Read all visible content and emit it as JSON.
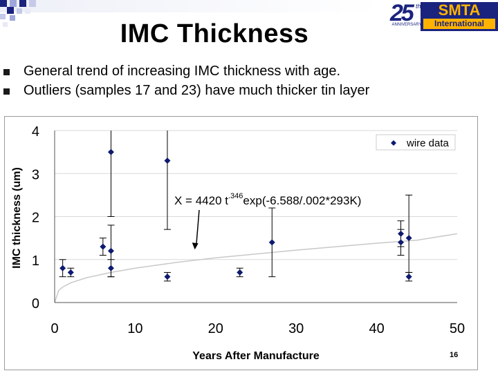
{
  "slide": {
    "title": "IMC Thickness",
    "bullets": [
      "General trend of increasing IMC thickness with age.",
      "Outliers (samples 17 and 23) have much thicker tin layer"
    ],
    "page_number": "16"
  },
  "logo": {
    "anniversary": "25",
    "anniversary_suffix": "th",
    "anniversary_sub": "ANNIVERSARY",
    "brand": "SMTA",
    "brand_sub": "International"
  },
  "colors": {
    "series": "#0d1a6e",
    "trend": "#c8c8c8",
    "grid": "#d9d9d9"
  },
  "chart_data": {
    "type": "scatter",
    "xlabel": "Years After Manufacture",
    "ylabel": "IMC thickness (um)",
    "xlim": [
      0,
      50
    ],
    "ylim": [
      0,
      4
    ],
    "x_ticks": [
      "0",
      "10",
      "20",
      "30",
      "40",
      "50"
    ],
    "y_ticks": [
      "0",
      "1",
      "2",
      "3",
      "4"
    ],
    "grid": "horizontal",
    "legend_placement": "top-right",
    "series": [
      {
        "name": "wire data",
        "points": [
          {
            "x": 1,
            "y": 0.8,
            "err_low": 0.6,
            "err_high": 1.0
          },
          {
            "x": 2,
            "y": 0.7,
            "err_low": 0.6,
            "err_high": 0.8
          },
          {
            "x": 6,
            "y": 1.3,
            "err_low": 1.1,
            "err_high": 1.5
          },
          {
            "x": 7,
            "y": 3.5,
            "err_low": 2.0,
            "err_high": 4.0
          },
          {
            "x": 7,
            "y": 1.2,
            "err_low": 0.6,
            "err_high": 1.8
          },
          {
            "x": 7,
            "y": 0.8,
            "err_low": 0.6,
            "err_high": 1.0
          },
          {
            "x": 14,
            "y": 3.3,
            "err_low": 1.7,
            "err_high": 4.0
          },
          {
            "x": 14,
            "y": 0.6,
            "err_low": 0.5,
            "err_high": 0.7
          },
          {
            "x": 23,
            "y": 0.7,
            "err_low": 0.6,
            "err_high": 0.8
          },
          {
            "x": 27,
            "y": 1.4,
            "err_low": 0.6,
            "err_high": 2.2
          },
          {
            "x": 43,
            "y": 1.6,
            "err_low": 1.3,
            "err_high": 1.9
          },
          {
            "x": 43,
            "y": 1.4,
            "err_low": 1.1,
            "err_high": 1.7
          },
          {
            "x": 44,
            "y": 1.5,
            "err_low": 0.7,
            "err_high": 2.5
          },
          {
            "x": 44,
            "y": 0.6,
            "err_low": 0.5,
            "err_high": 0.7
          }
        ]
      }
    ],
    "trend_line": {
      "points": [
        [
          0,
          0
        ],
        [
          0.5,
          0.28
        ],
        [
          1,
          0.36
        ],
        [
          2,
          0.46
        ],
        [
          4,
          0.58
        ],
        [
          7,
          0.7
        ],
        [
          10,
          0.8
        ],
        [
          15,
          0.93
        ],
        [
          20,
          1.04
        ],
        [
          25,
          1.13
        ],
        [
          30,
          1.22
        ],
        [
          35,
          1.3
        ],
        [
          40,
          1.38
        ],
        [
          45,
          1.45
        ],
        [
          50,
          1.6
        ]
      ]
    },
    "annotation": {
      "base": "X = 4420 t",
      "superscript": ".346",
      "tail": " exp(-6.588/.002*293K)",
      "arrow_to": [
        17.5,
        1.25
      ]
    }
  }
}
